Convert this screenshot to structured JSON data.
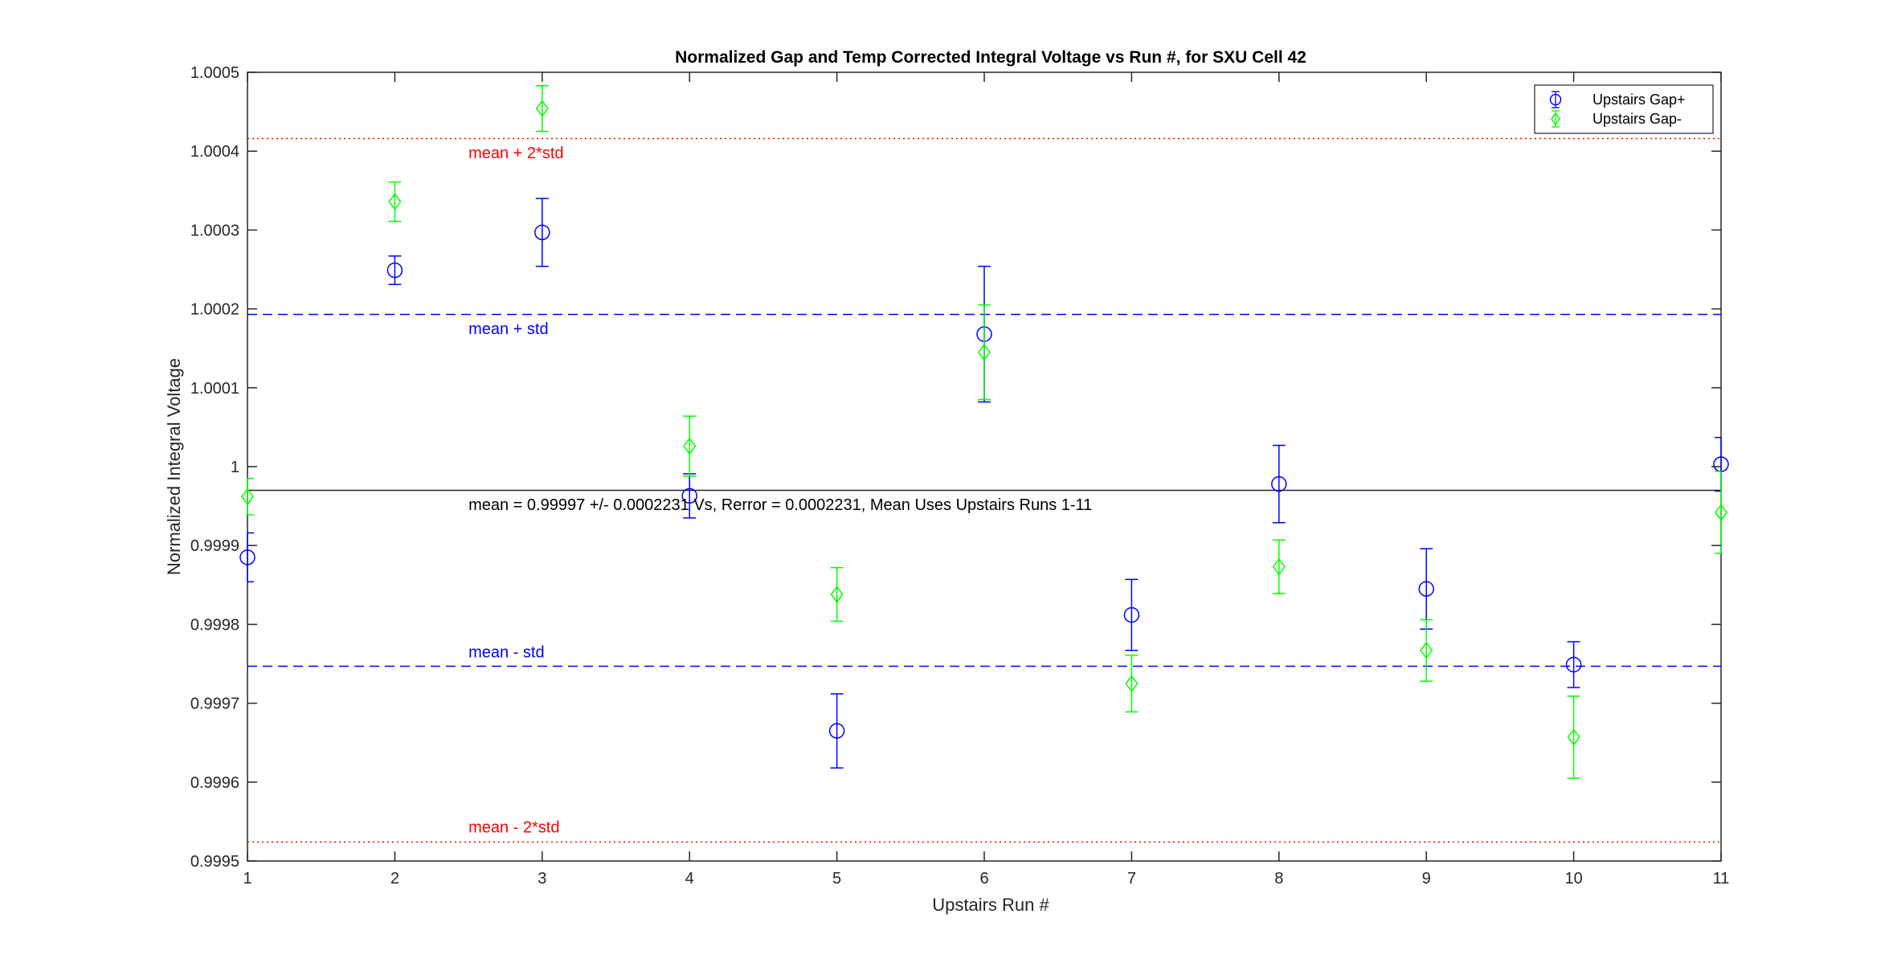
{
  "chart_data": {
    "type": "scatter",
    "title": "Normalized Gap and Temp Corrected Integral Voltage vs Run #, for SXU Cell 42",
    "xlabel": "Upstairs Run #",
    "ylabel": "Normalized Integral Voltage",
    "xlim": [
      1,
      11
    ],
    "ylim": [
      0.9995,
      1.0005
    ],
    "xticks": [
      1,
      2,
      3,
      4,
      5,
      6,
      7,
      8,
      9,
      10,
      11
    ],
    "yticks": [
      0.9995,
      0.9996,
      0.9997,
      0.9998,
      0.9999,
      1.0,
      1.0001,
      1.0002,
      1.0003,
      1.0004,
      1.0005
    ],
    "ytick_labels": [
      "0.9995",
      "0.9996",
      "0.9997",
      "0.9998",
      "0.9999",
      "1",
      "1.0001",
      "1.0002",
      "1.0003",
      "1.0004",
      "1.0005"
    ],
    "grid": false,
    "legend_position": "top-right",
    "series": [
      {
        "name": "Upstairs Gap+",
        "marker": "circle",
        "color": "#0000ff",
        "x": [
          1,
          2,
          3,
          4,
          5,
          6,
          7,
          8,
          9,
          10,
          11
        ],
        "y": [
          0.999885,
          1.000249,
          1.000297,
          0.999963,
          0.999665,
          1.000168,
          0.999812,
          0.999978,
          0.999845,
          0.999749,
          1.000003
        ],
        "err": [
          3.1e-05,
          1.8e-05,
          4.3e-05,
          2.8e-05,
          4.7e-05,
          8.6e-05,
          4.5e-05,
          4.9e-05,
          5.1e-05,
          2.9e-05,
          3.4e-05
        ]
      },
      {
        "name": "Upstairs Gap-",
        "marker": "diamond",
        "color": "#00ff00",
        "x": [
          1,
          2,
          3,
          4,
          5,
          6,
          7,
          8,
          9,
          10,
          11
        ],
        "y": [
          0.999962,
          1.000336,
          1.000454,
          1.000026,
          0.999838,
          1.000145,
          0.999725,
          0.999873,
          0.999767,
          0.999657,
          0.999942
        ],
        "err": [
          2.3e-05,
          2.5e-05,
          2.9e-05,
          3.8e-05,
          3.4e-05,
          6e-05,
          3.6e-05,
          3.4e-05,
          3.9e-05,
          5.2e-05,
          5.2e-05
        ]
      }
    ],
    "reference_lines": [
      {
        "y": 0.99997,
        "style": "solid",
        "color": "#262626"
      },
      {
        "y": 1.000193,
        "style": "dashed",
        "color": "#0000ff"
      },
      {
        "y": 0.999747,
        "style": "dashed",
        "color": "#0000ff"
      },
      {
        "y": 1.000416,
        "style": "dotted",
        "color": "#ff0000"
      },
      {
        "y": 0.999524,
        "style": "dotted",
        "color": "#ff0000"
      }
    ],
    "annotations": [
      {
        "text": "mean + 2*std",
        "x": 2.5,
        "y": 1.000391,
        "color": "#ff0000"
      },
      {
        "text": "mean + std",
        "x": 2.5,
        "y": 1.000168,
        "color": "#0000ff"
      },
      {
        "text": "mean = 0.99997 +/- 0.0002231 Vs, Rerror = 0.0002231, Mean Uses Upstairs Runs 1-11",
        "x": 2.5,
        "y": 0.999945,
        "color": "#000000"
      },
      {
        "text": "mean - std",
        "x": 2.5,
        "y": 0.999758,
        "color": "#0000ff"
      },
      {
        "text": "mean - 2*std",
        "x": 2.5,
        "y": 0.999536,
        "color": "#ff0000"
      }
    ]
  }
}
